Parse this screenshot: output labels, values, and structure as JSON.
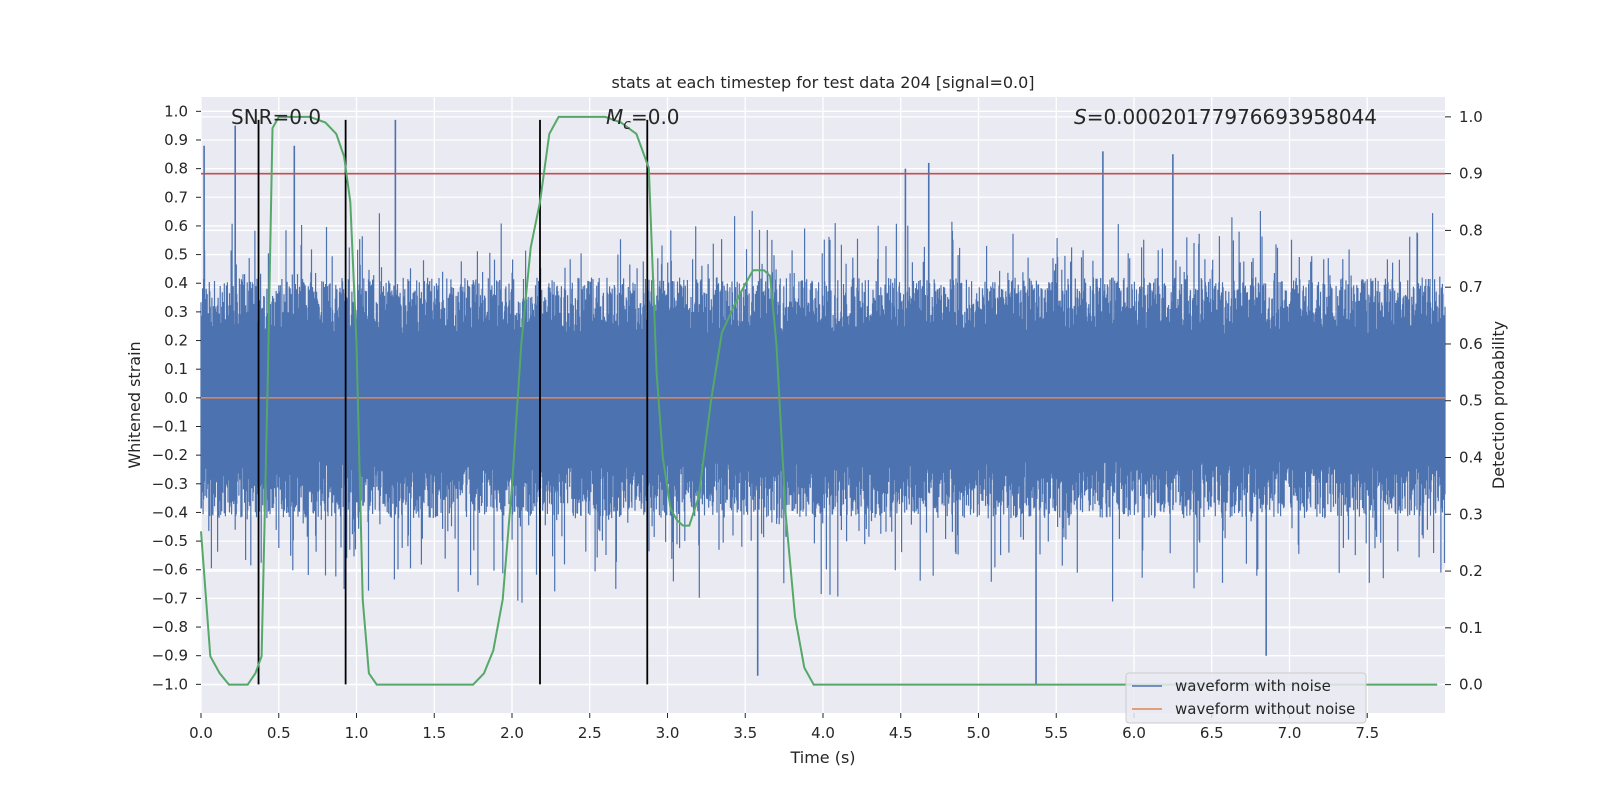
{
  "chart_data": {
    "type": "line",
    "title": "stats at each timestep for test data 204 [signal=0.0]",
    "xlabel": "Time (s)",
    "ylabel_left": "Whitened strain",
    "ylabel_right": "Detection probability",
    "xlim": [
      0,
      8
    ],
    "ylim_left": [
      -1.1,
      1.05
    ],
    "ylim_right": [
      -0.05,
      1.035
    ],
    "xticks": [
      "0.0",
      "0.5",
      "1.0",
      "1.5",
      "2.0",
      "2.5",
      "3.0",
      "3.5",
      "4.0",
      "4.5",
      "5.0",
      "5.5",
      "6.0",
      "6.5",
      "7.0",
      "7.5"
    ],
    "xtick_values": [
      0,
      0.5,
      1,
      1.5,
      2,
      2.5,
      3,
      3.5,
      4,
      4.5,
      5,
      5.5,
      6,
      6.5,
      7,
      7.5
    ],
    "yticks_left": [
      "1.0",
      "0.9",
      "0.8",
      "0.7",
      "0.6",
      "0.5",
      "0.4",
      "0.3",
      "0.2",
      "0.1",
      "0.0",
      "−0.1",
      "−0.2",
      "−0.3",
      "−0.4",
      "−0.5",
      "−0.6",
      "−0.7",
      "−0.8",
      "−0.9",
      "−1.0"
    ],
    "ytick_values_left": [
      1.0,
      0.9,
      0.8,
      0.7,
      0.6,
      0.5,
      0.4,
      0.3,
      0.2,
      0.1,
      0.0,
      -0.1,
      -0.2,
      -0.3,
      -0.4,
      -0.5,
      -0.6,
      -0.7,
      -0.8,
      -0.9,
      -1.0
    ],
    "yticks_right": [
      "1.0",
      "0.9",
      "0.8",
      "0.7",
      "0.6",
      "0.5",
      "0.4",
      "0.3",
      "0.2",
      "0.1",
      "0.0"
    ],
    "ytick_values_right": [
      1.0,
      0.9,
      0.8,
      0.7,
      0.6,
      0.5,
      0.4,
      0.3,
      0.2,
      0.1,
      0.0
    ],
    "annotations": {
      "snr": "SNR=0.0",
      "mc_symbol": "M",
      "mc_sub": "c",
      "mc_value": "=0.0",
      "s_symbol": "S",
      "s_value": "=0.00020177976693958044"
    },
    "threshold": {
      "value": 0.9,
      "axis": "right",
      "color": "#c44e52"
    },
    "vertical_lines": [
      0.37,
      0.93,
      2.18,
      2.87
    ],
    "vertical_line_range": [
      -1.0,
      0.97
    ],
    "noise_series": {
      "name": "waveform with noise",
      "color": "#4c72b0",
      "amplitude_typical": 0.4,
      "peaks": [
        {
          "x": 0.02,
          "y": 0.88
        },
        {
          "x": 0.22,
          "y": 0.95
        },
        {
          "x": 0.6,
          "y": 0.88
        },
        {
          "x": 1.25,
          "y": 0.97
        },
        {
          "x": 3.58,
          "y": -0.97
        },
        {
          "x": 4.53,
          "y": 0.8
        },
        {
          "x": 4.68,
          "y": 0.82
        },
        {
          "x": 5.37,
          "y": -1.0
        },
        {
          "x": 5.8,
          "y": 0.86
        },
        {
          "x": 6.25,
          "y": 0.85
        },
        {
          "x": 6.85,
          "y": -0.9
        }
      ]
    },
    "clean_series": {
      "name": "waveform without noise",
      "color": "#dd8452",
      "value": 0.0
    },
    "probability_series": {
      "name": "detection probability",
      "color": "#55a868",
      "x": [
        0.0,
        0.06,
        0.12,
        0.18,
        0.24,
        0.3,
        0.35,
        0.39,
        0.43,
        0.46,
        0.5,
        0.6,
        0.7,
        0.8,
        0.87,
        0.92,
        0.96,
        1.0,
        1.04,
        1.08,
        1.13,
        1.2,
        1.4,
        1.6,
        1.75,
        1.82,
        1.88,
        1.94,
        2.0,
        2.06,
        2.12,
        2.18,
        2.24,
        2.3,
        2.4,
        2.5,
        2.6,
        2.7,
        2.8,
        2.88,
        2.93,
        2.97,
        3.02,
        3.06,
        3.1,
        3.14,
        3.2,
        3.28,
        3.35,
        3.45,
        3.55,
        3.62,
        3.66,
        3.7,
        3.76,
        3.82,
        3.88,
        3.94,
        4.0,
        4.5,
        5.0,
        5.5,
        6.0,
        6.5,
        7.0,
        7.5,
        7.95
      ],
      "y": [
        0.27,
        0.05,
        0.02,
        0.0,
        0.0,
        0.0,
        0.02,
        0.05,
        0.55,
        0.98,
        1.0,
        1.0,
        1.0,
        0.99,
        0.97,
        0.93,
        0.85,
        0.6,
        0.15,
        0.02,
        0.0,
        0.0,
        0.0,
        0.0,
        0.0,
        0.02,
        0.06,
        0.15,
        0.35,
        0.6,
        0.77,
        0.85,
        0.97,
        1.0,
        1.0,
        1.0,
        1.0,
        0.99,
        0.97,
        0.91,
        0.55,
        0.4,
        0.31,
        0.29,
        0.28,
        0.28,
        0.33,
        0.5,
        0.62,
        0.68,
        0.73,
        0.73,
        0.72,
        0.6,
        0.3,
        0.12,
        0.03,
        0.0,
        0.0,
        0.0,
        0.0,
        0.0,
        0.0,
        0.0,
        0.0,
        0.0,
        0.0
      ]
    },
    "legend": {
      "position": "lower-right",
      "entries": [
        {
          "label": "waveform with noise",
          "color": "#4c72b0"
        },
        {
          "label": "waveform without noise",
          "color": "#dd8452"
        }
      ]
    },
    "grid": true
  },
  "colors": {
    "plot_background": "#eaeaf2",
    "grid": "#ffffff",
    "vertical_line": "#000000"
  }
}
